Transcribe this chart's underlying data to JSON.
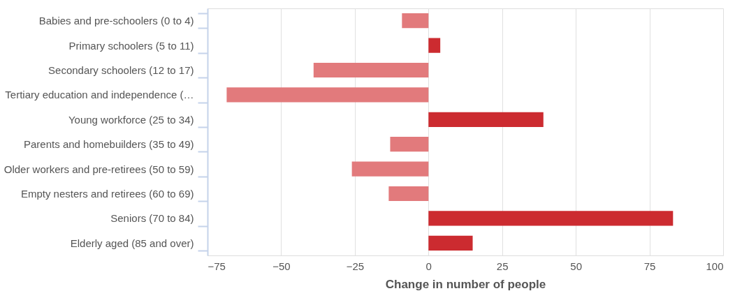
{
  "chart_data": {
    "type": "bar",
    "orientation": "horizontal",
    "xlabel": "Change in number of people",
    "categories": [
      "Babies and pre-schoolers (0 to 4)",
      "Primary schoolers (5 to 11)",
      "Secondary schoolers (12 to 17)",
      "Tertiary education and independence (…",
      "Young workforce (25 to 34)",
      "Parents and homebuilders (35 to 49)",
      "Older workers and pre-retirees (50 to 59)",
      "Empty nesters and retirees (60 to 69)",
      "Seniors (70 to 84)",
      "Elderly aged (85 and over)"
    ],
    "values": [
      -9,
      4,
      -39,
      -68.5,
      39,
      -13,
      -26,
      -13.5,
      83,
      15
    ],
    "colors": [
      "#e27a7c",
      "#cc2b30",
      "#e27a7c",
      "#e27a7c",
      "#cc2b30",
      "#e27a7c",
      "#e27a7c",
      "#e27a7c",
      "#cc2b30",
      "#cc2b30"
    ],
    "xlim": [
      -75,
      100
    ],
    "xticks": [
      -75,
      -50,
      -25,
      0,
      25,
      50,
      75,
      100
    ],
    "grid": "x"
  }
}
